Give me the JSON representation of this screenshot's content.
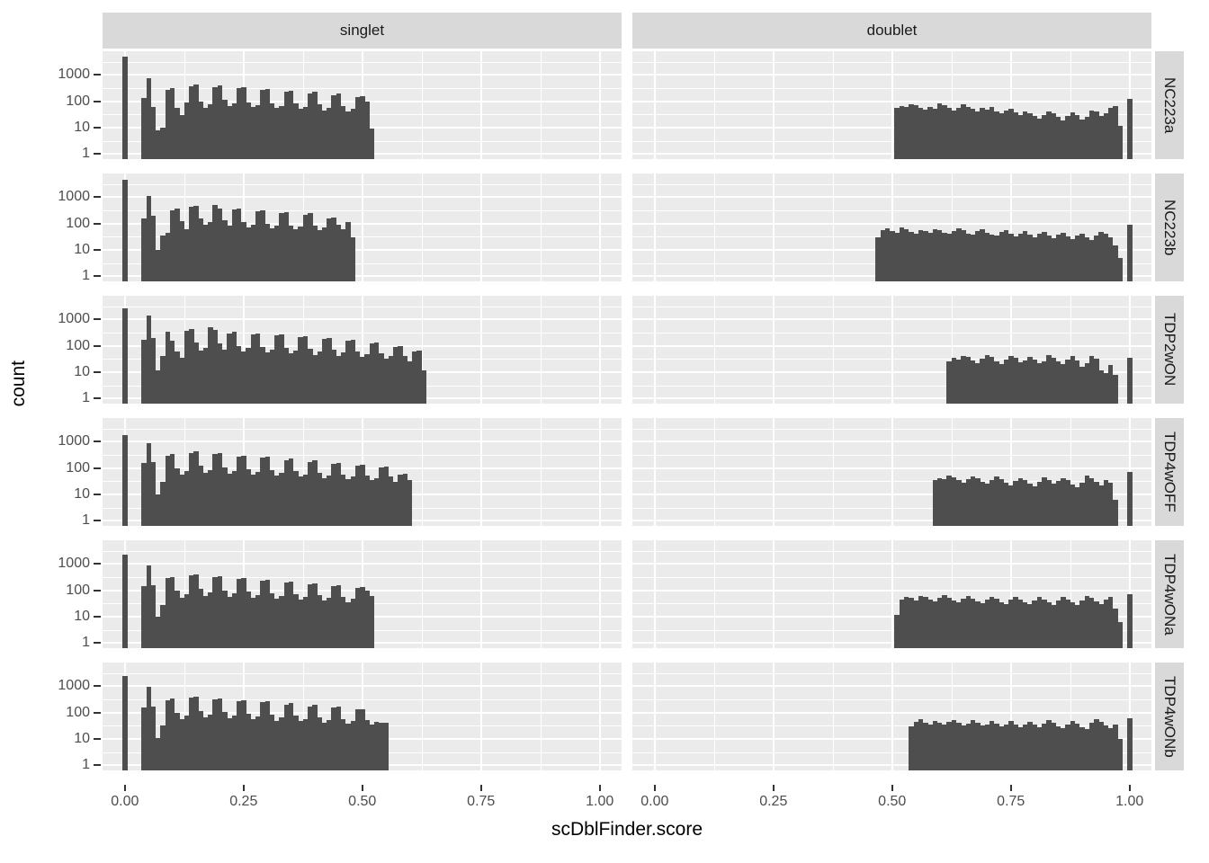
{
  "figure": {
    "y_title": "count",
    "x_title": "scDblFinder.score",
    "y_tick_labels": [
      "1000",
      "100",
      "10",
      "1"
    ],
    "y_tick_values": [
      1000,
      100,
      10,
      1
    ],
    "x_tick_labels": [
      "0.00",
      "0.25",
      "0.50",
      "0.75",
      "1.00"
    ],
    "x_tick_values": [
      0,
      0.25,
      0.5,
      0.75,
      1
    ],
    "colors": {
      "bar": "#4e4e4e",
      "panel_bg": "#ebebeb",
      "strip_bg": "#d9d9d9",
      "gridline": "#ffffff",
      "axis_text": "#4d4d4d",
      "strip_text": "#1a1a1a",
      "axis_title": "#000000",
      "tick_mark": "#333333"
    }
  },
  "facets": {
    "cols": [
      "singlet",
      "doublet"
    ],
    "rows": [
      "NC223a",
      "NC223b",
      "TDP2wON",
      "TDP4wOFF",
      "TDP4wONa",
      "TDP4wONb"
    ]
  },
  "chart_data": {
    "type": "bar",
    "subtype": "faceted-histogram",
    "xlabel": "scDblFinder.score",
    "ylabel": "count",
    "y_scale": "log10",
    "y_log_domain": [
      -0.2,
      3.9
    ],
    "x_domain": [
      -0.047,
      1.046
    ],
    "binwidth": 0.01,
    "grid": {
      "x_major": [
        0,
        0.25,
        0.5,
        0.75,
        1.0
      ],
      "x_minor": [
        0.125,
        0.375,
        0.625,
        0.875
      ],
      "y_major_log": [
        0,
        1,
        2,
        3
      ],
      "y_minor_log": [
        0.5,
        1.5,
        2.5,
        3.5
      ]
    },
    "panels": [
      {
        "row": "NC223a",
        "col": "singlet",
        "zero_spike": 4800,
        "one_spike": null,
        "bins_start": 0.04,
        "counts": [
          130,
          780,
          60,
          8,
          10,
          280,
          310,
          55,
          30,
          90,
          380,
          430,
          100,
          55,
          75,
          340,
          390,
          110,
          65,
          80,
          310,
          340,
          90,
          60,
          72,
          265,
          295,
          85,
          55,
          65,
          235,
          255,
          80,
          50,
          62,
          205,
          225,
          75,
          45,
          55,
          175,
          195,
          65,
          40,
          50,
          140,
          150,
          95,
          9
        ]
      },
      {
        "row": "NC223a",
        "col": "doublet",
        "zero_spike": null,
        "one_spike": 120,
        "bins_start": 0.51,
        "counts": [
          55,
          65,
          60,
          75,
          70,
          55,
          48,
          60,
          52,
          80,
          70,
          58,
          45,
          55,
          75,
          62,
          50,
          42,
          55,
          48,
          60,
          40,
          35,
          45,
          52,
          38,
          30,
          40,
          35,
          28,
          22,
          30,
          42,
          35,
          25,
          18,
          28,
          38,
          30,
          20,
          25,
          45,
          40,
          28,
          35,
          55,
          65,
          12
        ]
      },
      {
        "row": "NC223b",
        "col": "singlet",
        "zero_spike": 4500,
        "one_spike": null,
        "bins_start": 0.04,
        "counts": [
          160,
          1100,
          190,
          10,
          35,
          45,
          320,
          360,
          120,
          60,
          420,
          470,
          160,
          90,
          110,
          500,
          380,
          130,
          80,
          330,
          360,
          110,
          70,
          90,
          290,
          310,
          95,
          65,
          80,
          250,
          270,
          85,
          60,
          75,
          220,
          240,
          80,
          55,
          70,
          150,
          170,
          90,
          60,
          110,
          30
        ]
      },
      {
        "row": "NC223b",
        "col": "doublet",
        "zero_spike": null,
        "one_spike": 90,
        "bins_start": 0.47,
        "counts": [
          30,
          55,
          65,
          50,
          45,
          70,
          60,
          48,
          42,
          58,
          52,
          44,
          62,
          55,
          45,
          40,
          52,
          66,
          55,
          42,
          38,
          50,
          60,
          45,
          38,
          35,
          48,
          55,
          40,
          33,
          42,
          52,
          38,
          30,
          40,
          48,
          35,
          28,
          38,
          45,
          32,
          26,
          36,
          42,
          30,
          24,
          34,
          46,
          40,
          30,
          15,
          5
        ]
      },
      {
        "row": "TDP2wON",
        "col": "singlet",
        "zero_spike": 2600,
        "one_spike": null,
        "bins_start": 0.04,
        "counts": [
          170,
          1400,
          200,
          12,
          40,
          350,
          150,
          60,
          35,
          380,
          420,
          130,
          65,
          85,
          520,
          390,
          120,
          70,
          300,
          330,
          100,
          60,
          80,
          280,
          300,
          90,
          55,
          70,
          240,
          260,
          80,
          50,
          65,
          210,
          230,
          75,
          45,
          60,
          180,
          200,
          70,
          42,
          55,
          150,
          165,
          60,
          38,
          48,
          120,
          130,
          50,
          32,
          42,
          90,
          100,
          42,
          25,
          60,
          65,
          12
        ]
      },
      {
        "row": "TDP2wON",
        "col": "doublet",
        "zero_spike": null,
        "one_spike": 35,
        "bins_start": 0.62,
        "counts": [
          25,
          35,
          30,
          42,
          38,
          28,
          22,
          32,
          45,
          38,
          26,
          20,
          30,
          42,
          35,
          24,
          28,
          38,
          30,
          22,
          26,
          44,
          36,
          26,
          20,
          30,
          40,
          28,
          16,
          22,
          40,
          32,
          12,
          9,
          18,
          8
        ]
      },
      {
        "row": "TDP4wOFF",
        "col": "singlet",
        "zero_spike": 1800,
        "one_spike": null,
        "bins_start": 0.04,
        "counts": [
          150,
          900,
          170,
          10,
          30,
          300,
          330,
          100,
          55,
          75,
          380,
          420,
          120,
          65,
          85,
          330,
          360,
          105,
          60,
          78,
          280,
          300,
          92,
          55,
          70,
          240,
          260,
          82,
          50,
          64,
          205,
          225,
          74,
          46,
          58,
          175,
          190,
          66,
          42,
          52,
          148,
          160,
          58,
          38,
          47,
          125,
          135,
          52,
          34,
          42,
          105,
          112,
          46,
          30,
          55,
          60,
          35
        ]
      },
      {
        "row": "TDP4wOFF",
        "col": "doublet",
        "zero_spike": null,
        "one_spike": 70,
        "bins_start": 0.59,
        "counts": [
          35,
          42,
          38,
          50,
          44,
          34,
          28,
          38,
          48,
          40,
          30,
          25,
          35,
          46,
          38,
          28,
          22,
          32,
          42,
          34,
          26,
          20,
          30,
          44,
          36,
          26,
          32,
          42,
          34,
          24,
          18,
          28,
          50,
          42,
          30,
          22,
          35,
          28,
          6
        ]
      },
      {
        "row": "TDP4wONa",
        "col": "singlet",
        "zero_spike": 2300,
        "one_spike": null,
        "bins_start": 0.04,
        "counts": [
          140,
          850,
          160,
          10,
          28,
          290,
          320,
          95,
          52,
          72,
          370,
          410,
          115,
          62,
          82,
          320,
          350,
          100,
          58,
          75,
          270,
          295,
          88,
          52,
          68,
          235,
          255,
          78,
          48,
          62,
          200,
          218,
          72,
          45,
          56,
          170,
          185,
          64,
          40,
          50,
          145,
          158,
          56,
          36,
          46,
          120,
          130,
          95,
          60
        ]
      },
      {
        "row": "TDP4wONa",
        "col": "doublet",
        "zero_spike": null,
        "one_spike": 70,
        "bins_start": 0.51,
        "counts": [
          12,
          45,
          58,
          50,
          40,
          62,
          55,
          44,
          38,
          52,
          64,
          52,
          40,
          34,
          48,
          60,
          48,
          38,
          32,
          45,
          58,
          46,
          36,
          30,
          44,
          56,
          44,
          35,
          30,
          42,
          55,
          44,
          34,
          28,
          40,
          55,
          45,
          34,
          28,
          40,
          60,
          50,
          38,
          30,
          45,
          55,
          20,
          6
        ]
      },
      {
        "row": "TDP4wONb",
        "col": "singlet",
        "zero_spike": 2500,
        "one_spike": null,
        "bins_start": 0.04,
        "counts": [
          150,
          950,
          175,
          11,
          32,
          300,
          330,
          98,
          54,
          74,
          380,
          415,
          118,
          64,
          84,
          325,
          355,
          102,
          59,
          77,
          275,
          300,
          90,
          54,
          70,
          240,
          262,
          80,
          49,
          64,
          205,
          224,
          74,
          46,
          58,
          175,
          190,
          66,
          42,
          52,
          150,
          162,
          58,
          38,
          48,
          128,
          138,
          52,
          35,
          44,
          42,
          40
        ]
      },
      {
        "row": "TDP4wONb",
        "col": "doublet",
        "zero_spike": null,
        "one_spike": 60,
        "bins_start": 0.54,
        "counts": [
          30,
          45,
          55,
          42,
          35,
          48,
          40,
          34,
          44,
          52,
          42,
          33,
          38,
          50,
          40,
          32,
          36,
          48,
          38,
          30,
          35,
          46,
          36,
          28,
          34,
          45,
          35,
          27,
          38,
          50,
          40,
          30,
          26,
          36,
          48,
          38,
          28,
          24,
          40,
          55,
          45,
          32,
          25,
          35,
          10
        ]
      }
    ]
  }
}
